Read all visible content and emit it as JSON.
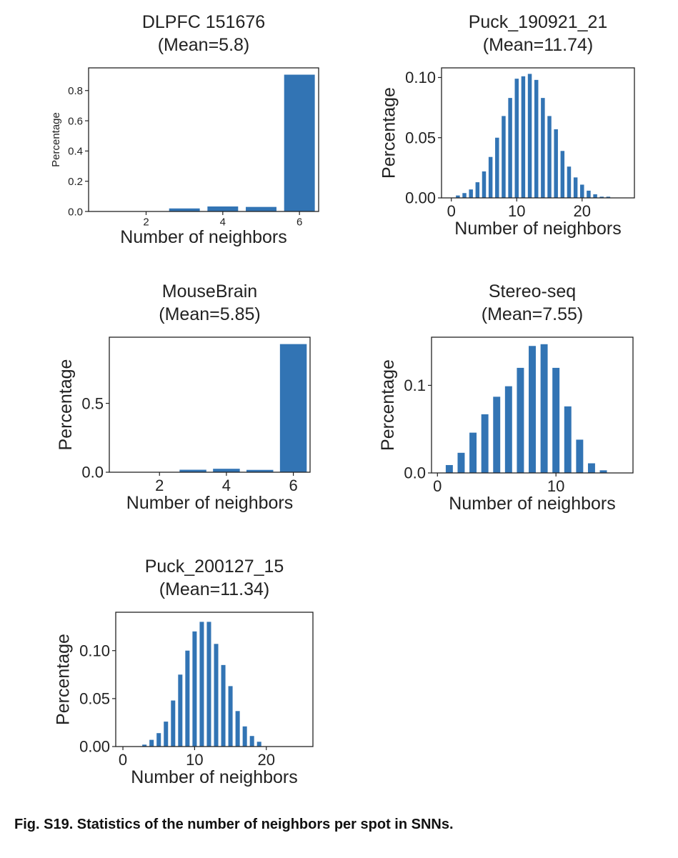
{
  "caption": "Fig. S19. Statistics of the number of neighbors per spot in SNNs.",
  "bar_color": "#3274b4",
  "chart_data": [
    {
      "type": "bar",
      "title": "DLPFC 151676",
      "subtitle": "(Mean=5.8)",
      "xlabel": "Number of neighbors",
      "ylabel": "Percentage",
      "x": [
        1,
        2,
        3,
        4,
        5,
        6
      ],
      "values": [
        0.0,
        0.002,
        0.02,
        0.033,
        0.03,
        0.905
      ],
      "xlim": [
        0.5,
        6.5
      ],
      "ylim": [
        0,
        0.95
      ],
      "xticks": [
        2,
        4,
        6
      ],
      "yticks": [
        0.0,
        0.2,
        0.4,
        0.6,
        0.8
      ],
      "ytick_labels": [
        "0.0",
        "0.2",
        "0.4",
        "0.6",
        "0.8"
      ],
      "bar_width": 0.8,
      "grid": false
    },
    {
      "type": "bar",
      "title": "Puck_190921_21",
      "subtitle": "(Mean=11.74)",
      "xlabel": "Number of neighbors",
      "ylabel": "Percentage",
      "x": [
        1,
        2,
        3,
        4,
        5,
        6,
        7,
        8,
        9,
        10,
        11,
        12,
        13,
        14,
        15,
        16,
        17,
        18,
        19,
        20,
        21,
        22,
        23,
        24
      ],
      "values": [
        0.002,
        0.004,
        0.007,
        0.013,
        0.022,
        0.034,
        0.05,
        0.068,
        0.083,
        0.099,
        0.101,
        0.103,
        0.098,
        0.083,
        0.068,
        0.057,
        0.039,
        0.026,
        0.017,
        0.011,
        0.006,
        0.003,
        0.001,
        0.001
      ],
      "xlim": [
        -1.5,
        28
      ],
      "ylim": [
        0,
        0.108
      ],
      "xticks": [
        0,
        10,
        20
      ],
      "yticks": [
        0.0,
        0.05,
        0.1
      ],
      "ytick_labels": [
        "0.00",
        "0.05",
        "0.10"
      ],
      "bar_width": 0.6,
      "grid": false
    },
    {
      "type": "bar",
      "title": "MouseBrain",
      "subtitle": "(Mean=5.85)",
      "xlabel": "Number of neighbors",
      "ylabel": "Percentage",
      "x": [
        1,
        2,
        3,
        4,
        5,
        6
      ],
      "values": [
        0.0,
        0.001,
        0.018,
        0.025,
        0.017,
        0.93
      ],
      "xlim": [
        0.5,
        6.5
      ],
      "ylim": [
        0,
        0.98
      ],
      "xticks": [
        2,
        4,
        6
      ],
      "yticks": [
        0.0,
        0.5
      ],
      "ytick_labels": [
        "0.0",
        "0.5"
      ],
      "bar_width": 0.8,
      "grid": false
    },
    {
      "type": "bar",
      "title": "Stereo-seq",
      "subtitle": "(Mean=7.55)",
      "xlabel": "Number of neighbors",
      "ylabel": "Percentage",
      "x": [
        1,
        2,
        3,
        4,
        5,
        6,
        7,
        8,
        9,
        10,
        11,
        12,
        13,
        14
      ],
      "values": [
        0.009,
        0.023,
        0.046,
        0.067,
        0.087,
        0.099,
        0.12,
        0.145,
        0.147,
        0.12,
        0.076,
        0.038,
        0.011,
        0.003
      ],
      "xlim": [
        -0.5,
        16.5
      ],
      "ylim": [
        0,
        0.155
      ],
      "xticks": [
        0,
        10
      ],
      "yticks": [
        0.0,
        0.1
      ],
      "ytick_labels": [
        "0.0",
        "0.1"
      ],
      "bar_width": 0.6,
      "grid": false
    },
    {
      "type": "bar",
      "title": "Puck_200127_15",
      "subtitle": "(Mean=11.34)",
      "xlabel": "Number of neighbors",
      "ylabel": "Percentage",
      "x": [
        3,
        4,
        5,
        6,
        7,
        8,
        9,
        10,
        11,
        12,
        13,
        14,
        15,
        16,
        17,
        18,
        19
      ],
      "values": [
        0.002,
        0.007,
        0.014,
        0.026,
        0.048,
        0.075,
        0.1,
        0.12,
        0.13,
        0.13,
        0.107,
        0.085,
        0.063,
        0.037,
        0.021,
        0.011,
        0.005
      ],
      "xlim": [
        -1,
        26.5
      ],
      "ylim": [
        0,
        0.14
      ],
      "xticks": [
        0,
        10,
        20
      ],
      "yticks": [
        0.0,
        0.05,
        0.1
      ],
      "ytick_labels": [
        "0.00",
        "0.05",
        "0.10"
      ],
      "bar_width": 0.6,
      "grid": false
    }
  ]
}
